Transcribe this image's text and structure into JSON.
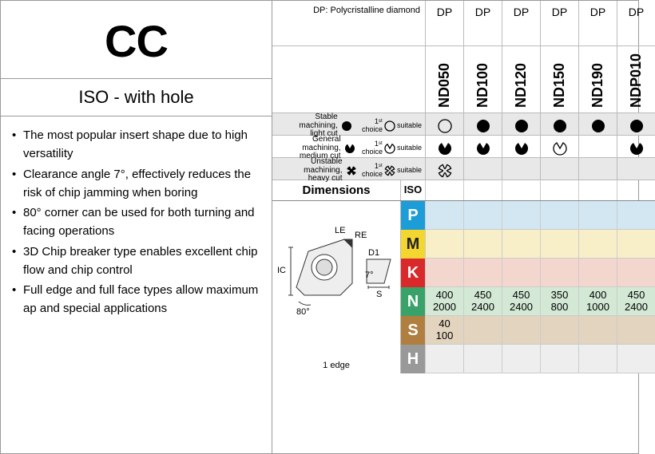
{
  "title": "CC",
  "subtitle": "ISO - with hole",
  "dp_header_label": "DP: Polycristalline diamond",
  "dp_cols": [
    "DP",
    "DP",
    "DP",
    "DP",
    "DP",
    "DP"
  ],
  "grade_codes": [
    "ND050",
    "ND100",
    "ND120",
    "ND150",
    "ND190",
    "NDP010"
  ],
  "bullets": [
    "The most popular insert shape due to high versatility",
    "Clearance angle 7°, effectively reduces the risk of chip jamming when boring",
    "80° corner can be used for both turning and facing operations",
    "3D Chip breaker type enables excellent chip flow and chip control",
    "Full edge and full face types allow maximum ap and special applications"
  ],
  "legend": {
    "rows": [
      {
        "label": "Stable machining,\nlight cut",
        "first": "circle-filled",
        "suit": "circle-open",
        "cells": [
          "circle-open",
          "circle-filled",
          "circle-filled",
          "circle-filled",
          "circle-filled",
          "circle-filled"
        ],
        "alt": true
      },
      {
        "label": "General machining,\nmedium cut",
        "first": "pac-filled",
        "suit": "pac-open",
        "cells": [
          "pac-filled",
          "pac-filled",
          "pac-filled",
          "pac-open",
          "",
          "pac-filled"
        ],
        "alt": false
      },
      {
        "label": "Unstable machining,\nheavy cut",
        "first": "gear-filled",
        "suit": "gear-open",
        "cells": [
          "gear-open",
          "",
          "",
          "",
          "",
          ""
        ],
        "alt": true
      }
    ],
    "first_text": "1ˢᵗ choice",
    "suit_text": "suitable"
  },
  "dim_heading": "Dimensions",
  "iso_heading": "ISO",
  "diagram": {
    "caption": "1 edge",
    "labels": {
      "LE": "LE",
      "RE": "RE",
      "IC": "IC",
      "D1": "D1",
      "S": "S",
      "ang7": "7°",
      "ang80": "80°"
    }
  },
  "materials": [
    {
      "code": "P",
      "bg": "bg-P",
      "cells": [
        "",
        "",
        "",
        "",
        "",
        ""
      ]
    },
    {
      "code": "M",
      "bg": "bg-M",
      "cells": [
        "",
        "",
        "",
        "",
        "",
        ""
      ]
    },
    {
      "code": "K",
      "bg": "bg-K",
      "cells": [
        "",
        "",
        "",
        "",
        "",
        ""
      ]
    },
    {
      "code": "N",
      "bg": "bg-N",
      "cells": [
        [
          "400",
          "2000"
        ],
        [
          "450",
          "2400"
        ],
        [
          "450",
          "2400"
        ],
        [
          "350",
          "800"
        ],
        [
          "400",
          "1000"
        ],
        [
          "450",
          "2400"
        ]
      ]
    },
    {
      "code": "S",
      "bg": "bg-S",
      "cells": [
        [
          "40",
          "100"
        ],
        "",
        "",
        "",
        "",
        ""
      ]
    },
    {
      "code": "H",
      "bg": "bg-H",
      "cells": [
        "",
        "",
        "",
        "",
        "",
        ""
      ]
    }
  ],
  "colors": {
    "border": "#999"
  }
}
